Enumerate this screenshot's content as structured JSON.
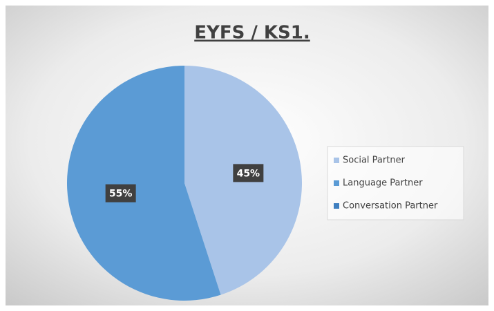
{
  "chart_data": {
    "type": "pie",
    "title": "EYFS / KS1.",
    "categories": [
      "Social Partner",
      "Language Partner",
      "Conversation Partner"
    ],
    "values": [
      45,
      55,
      0
    ],
    "value_labels": [
      "45%",
      "55%",
      null
    ],
    "colors": [
      "#a9c4e8",
      "#5b9bd5",
      "#3f7fc0"
    ],
    "legend": "right"
  }
}
